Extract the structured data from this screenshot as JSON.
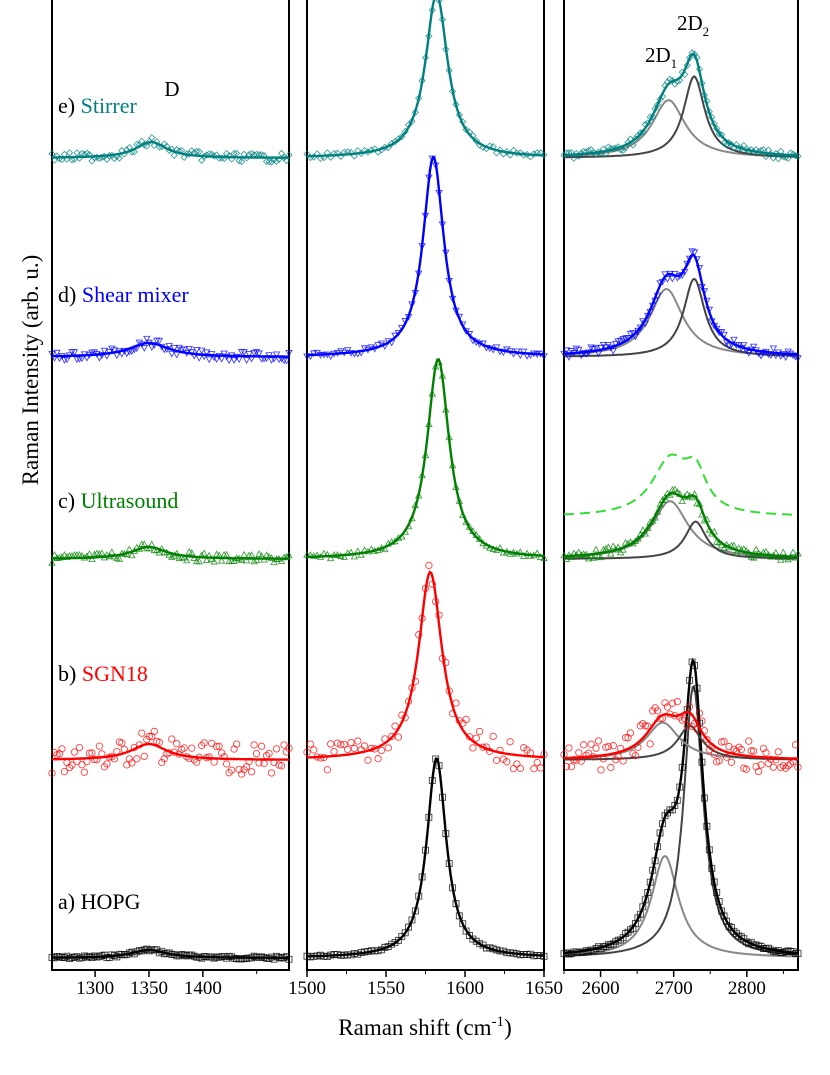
{
  "chart_data": {
    "type": "line",
    "xlabel": "Raman shift (cm",
    "xlabel_sup": "-1",
    "xlabel_close": ")",
    "ylabel": "Raman Intensity (arb. u.)",
    "grid": false,
    "panels": [
      {
        "xlim": [
          1260,
          1480
        ],
        "ticks": [
          1300,
          1350,
          1400
        ],
        "tick_labels": [
          "1300",
          "1350",
          "1400"
        ]
      },
      {
        "xlim": [
          1500,
          1650
        ],
        "ticks": [
          1500,
          1550,
          1600,
          1650
        ],
        "tick_labels": [
          "1500",
          "1550",
          "1600",
          "1650"
        ]
      },
      {
        "xlim": [
          2550,
          2870
        ],
        "ticks": [
          2600,
          2700,
          2800
        ],
        "tick_labels": [
          "2600",
          "2700",
          "2800"
        ]
      }
    ],
    "peak_labels": [
      {
        "text": "D",
        "sub": ""
      },
      {
        "text": "2D",
        "sub": "1"
      },
      {
        "text": "2D",
        "sub": "2"
      }
    ],
    "series": [
      {
        "label": "a)",
        "name": "HOPG",
        "color": "#000000",
        "marker": "square",
        "D": {
          "center": 1350,
          "width": 40,
          "height": 0.04
        },
        "G": {
          "center": 1582,
          "width": 15,
          "height": 1.0
        },
        "D2": [
          {
            "center": 2688,
            "width": 45,
            "height": 0.3
          },
          {
            "center": 2727,
            "width": 32,
            "height": 0.8
          }
        ]
      },
      {
        "label": "b)",
        "name": "SGN18",
        "color": "#ff0000",
        "marker": "circle",
        "D": {
          "center": 1350,
          "width": 40,
          "height": 0.08
        },
        "G": {
          "center": 1578,
          "width": 18,
          "height": 1.0
        },
        "D2": [
          {
            "center": 2685,
            "width": 55,
            "height": 0.11
          },
          {
            "center": 2722,
            "width": 40,
            "height": 0.1
          }
        ]
      },
      {
        "label": "c)",
        "name": "Ultrasound",
        "color": "#008000",
        "marker": "triangle-up",
        "D": {
          "center": 1350,
          "width": 40,
          "height": 0.06
        },
        "G": {
          "center": 1583,
          "width": 17,
          "height": 1.0
        },
        "D2": [
          {
            "center": 2695,
            "width": 60,
            "height": 0.17
          },
          {
            "center": 2730,
            "width": 35,
            "height": 0.11
          }
        ],
        "dashed_color": "#33dd33"
      },
      {
        "label": "d)",
        "name": "Shear mixer",
        "color": "#0000ff",
        "marker": "triangle-down",
        "D": {
          "center": 1350,
          "width": 45,
          "height": 0.07
        },
        "G": {
          "center": 1580,
          "width": 16,
          "height": 1.0
        },
        "D2": [
          {
            "center": 2690,
            "width": 55,
            "height": 0.2
          },
          {
            "center": 2728,
            "width": 35,
            "height": 0.23
          }
        ]
      },
      {
        "label": "e)",
        "name": "Stirrer",
        "color": "#008080",
        "marker": "diamond",
        "D": {
          "center": 1352,
          "width": 35,
          "height": 0.08
        },
        "G": {
          "center": 1582,
          "width": 17,
          "height": 1.0
        },
        "D2": [
          {
            "center": 2693,
            "width": 55,
            "height": 0.17
          },
          {
            "center": 2728,
            "width": 35,
            "height": 0.24
          }
        ]
      }
    ]
  }
}
